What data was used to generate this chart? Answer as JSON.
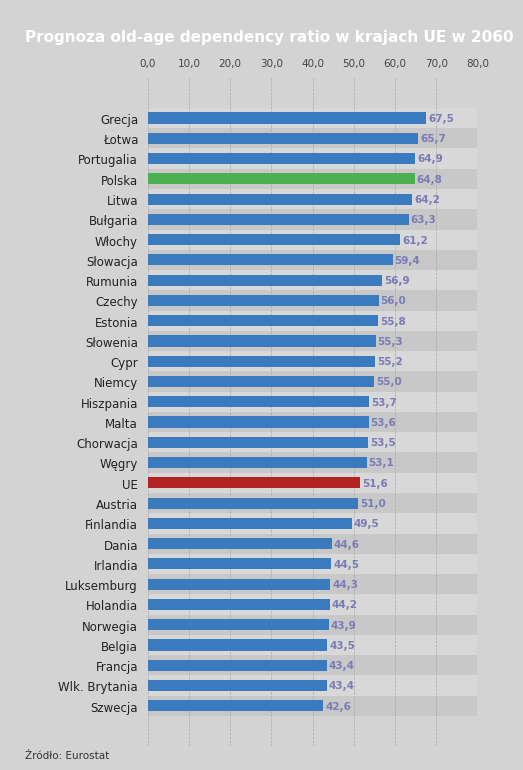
{
  "title": "Prognoza old-age dependency ratio w krajach UE w 2060",
  "source": "Źródło: Eurostat",
  "categories": [
    "Grecja",
    "Łotwa",
    "Portugalia",
    "Polska",
    "Litwa",
    "Bułgaria",
    "Włochy",
    "Słowacja",
    "Rumunia",
    "Czechy",
    "Estonia",
    "Słowenia",
    "Cypr",
    "Niemcy",
    "Hiszpania",
    "Malta",
    "Chorwacja",
    "Węgry",
    "UE",
    "Austria",
    "Finlandia",
    "Dania",
    "Irlandia",
    "Luksemburg",
    "Holandia",
    "Norwegia",
    "Belgia",
    "Francja",
    "Wlk. Brytania",
    "Szwecja"
  ],
  "values": [
    67.5,
    65.7,
    64.9,
    64.8,
    64.2,
    63.3,
    61.2,
    59.4,
    56.9,
    56.0,
    55.8,
    55.3,
    55.2,
    55.0,
    53.7,
    53.6,
    53.5,
    53.1,
    51.6,
    51.0,
    49.5,
    44.6,
    44.5,
    44.3,
    44.2,
    43.9,
    43.5,
    43.4,
    43.4,
    42.6
  ],
  "bar_colors": [
    "#3a7bbf",
    "#3a7bbf",
    "#3a7bbf",
    "#4caf50",
    "#3a7bbf",
    "#3a7bbf",
    "#3a7bbf",
    "#3a7bbf",
    "#3a7bbf",
    "#3a7bbf",
    "#3a7bbf",
    "#3a7bbf",
    "#3a7bbf",
    "#3a7bbf",
    "#3a7bbf",
    "#3a7bbf",
    "#3a7bbf",
    "#3a7bbf",
    "#b22222",
    "#3a7bbf",
    "#3a7bbf",
    "#3a7bbf",
    "#3a7bbf",
    "#3a7bbf",
    "#3a7bbf",
    "#3a7bbf",
    "#3a7bbf",
    "#3a7bbf",
    "#3a7bbf",
    "#3a7bbf"
  ],
  "value_label_color": "#7b7bb5",
  "background_color": "#d3d3d3",
  "title_bg_color": "#1a1a2e",
  "title_text_color": "#ffffff",
  "alt_row_color": "#c8c8c8",
  "bar_row_color": "#d8d8d8",
  "xlim": [
    0,
    80
  ],
  "xticks": [
    0.0,
    10.0,
    20.0,
    30.0,
    40.0,
    50.0,
    60.0,
    70.0,
    80.0
  ],
  "xtick_labels": [
    "0,0",
    "10,0",
    "20,0",
    "30,0",
    "40,0",
    "50,0",
    "60,0",
    "70,0",
    "80,0"
  ]
}
